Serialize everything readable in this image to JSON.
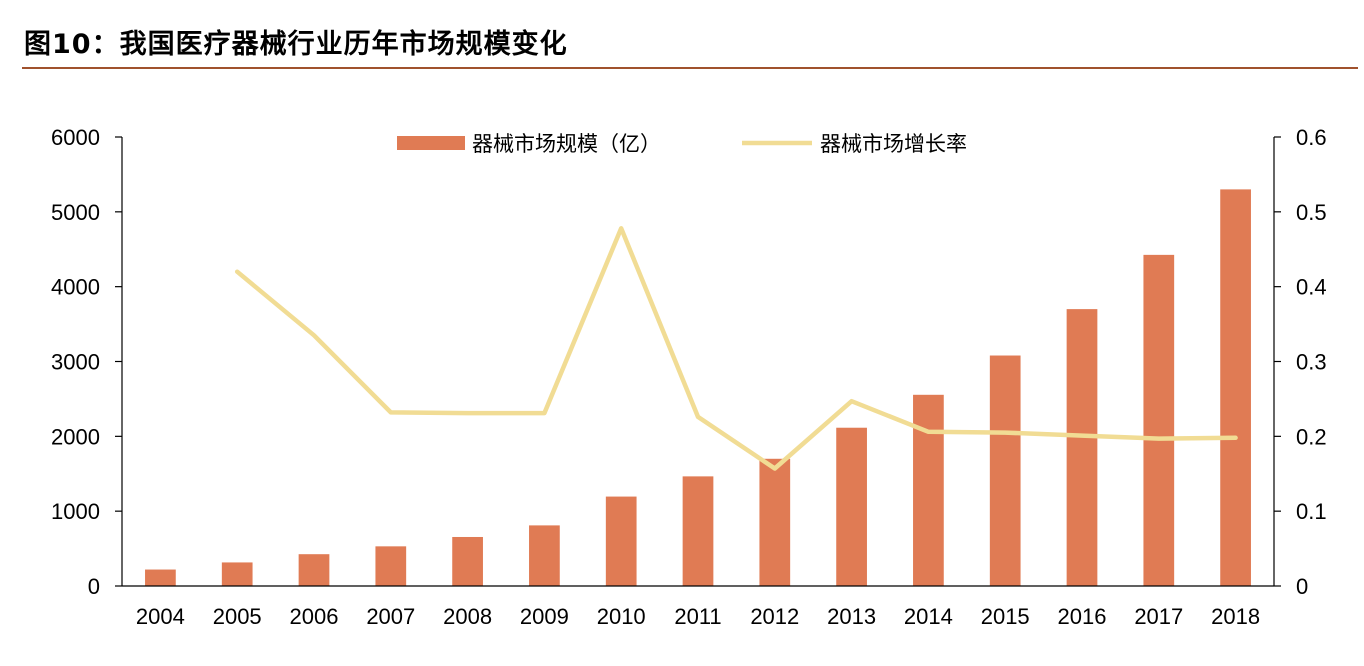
{
  "figure": {
    "title": "图10：我国医疗器械行业历年市场规模变化"
  },
  "colors": {
    "bar": "#e07b54",
    "line": "#f1dc94",
    "rule": "#a0522d",
    "axis": "#000000"
  },
  "chart_data": {
    "type": "bar",
    "title": "",
    "xlabel": "",
    "ylabel": "",
    "y2label": "",
    "categories": [
      "2004",
      "2005",
      "2006",
      "2007",
      "2008",
      "2009",
      "2010",
      "2011",
      "2012",
      "2013",
      "2014",
      "2015",
      "2016",
      "2017",
      "2018"
    ],
    "series": [
      {
        "name": "器械市场规模（亿）",
        "type": "bar",
        "axis": "left",
        "values": [
          220,
          315,
          425,
          530,
          655,
          810,
          1195,
          1465,
          1700,
          2115,
          2555,
          3080,
          3700,
          4425,
          5300
        ]
      },
      {
        "name": "器械市场增长率",
        "type": "line",
        "axis": "right",
        "values": [
          null,
          0.42,
          0.335,
          0.232,
          0.231,
          0.231,
          0.478,
          0.226,
          0.157,
          0.247,
          0.206,
          0.205,
          0.201,
          0.197,
          0.198
        ]
      }
    ],
    "ylim": [
      0,
      6000
    ],
    "y2lim": [
      0,
      0.6
    ],
    "yticks": [
      "0",
      "1000",
      "2000",
      "3000",
      "4000",
      "5000",
      "6000"
    ],
    "y2ticks": [
      "0",
      "0.1",
      "0.2",
      "0.3",
      "0.4",
      "0.5",
      "0.6"
    ],
    "grid": false,
    "legend": "top-center"
  }
}
